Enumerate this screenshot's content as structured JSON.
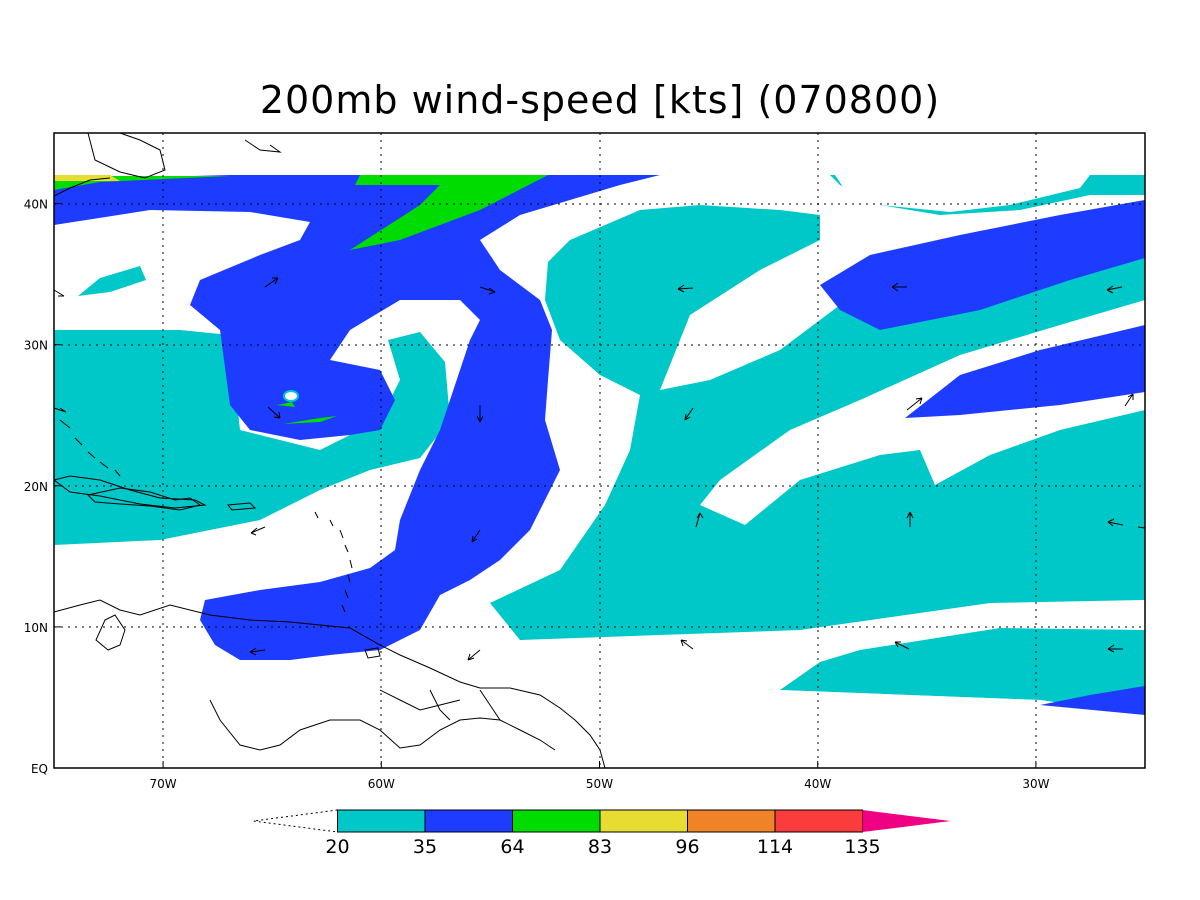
{
  "title": "200mb wind-speed [kts] (070800)",
  "axes": {
    "lon_ticks": [
      {
        "lon": -70,
        "label": "70W"
      },
      {
        "lon": -60,
        "label": "60W"
      },
      {
        "lon": -50,
        "label": "50W"
      },
      {
        "lon": -40,
        "label": "40W"
      },
      {
        "lon": -30,
        "label": "30W"
      }
    ],
    "lat_ticks": [
      {
        "lat": 0,
        "label": "EQ"
      },
      {
        "lat": 10,
        "label": "10N"
      },
      {
        "lat": 20,
        "label": "20N"
      },
      {
        "lat": 30,
        "label": "30N"
      },
      {
        "lat": 40,
        "label": "40N"
      }
    ],
    "lon_range": [
      -75,
      -25
    ],
    "lat_range": [
      0,
      45
    ],
    "grid": "dotted"
  },
  "colorbar": {
    "thresholds": [
      "20",
      "35",
      "64",
      "83",
      "96",
      "114",
      "135"
    ],
    "colors": [
      "#00c8c8",
      "#1e3cff",
      "#00dc00",
      "#e6dc32",
      "#f08228",
      "#fa3c3c",
      "#f00082"
    ],
    "under_color": "#ffffff"
  }
}
